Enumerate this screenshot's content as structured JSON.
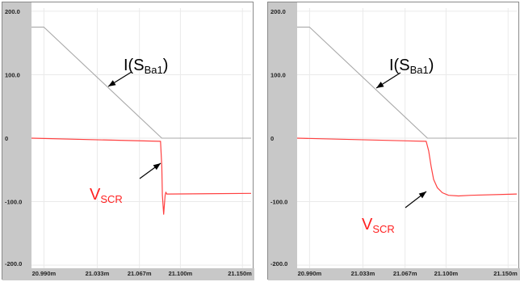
{
  "chart_data": [
    {
      "type": "line",
      "title": "",
      "xlabel": "",
      "ylabel": "",
      "xlim": [
        20.98,
        21.157
      ],
      "ylim": [
        -205,
        205
      ],
      "y_ticks": [
        "200.0",
        "100.0",
        "0",
        "-100.0",
        "-200.0"
      ],
      "x_ticks": [
        "20.990m",
        "21.033m",
        "21.067m",
        "21.100m",
        "21.150m"
      ],
      "grid": true,
      "series": [
        {
          "name": "",
          "color": "#a8a8a8",
          "x": [
            20.98,
            20.99,
            21.085,
            21.157
          ],
          "y": [
            175,
            175,
            0,
            0
          ]
        },
        {
          "name": "",
          "color": "#ff4040",
          "x": [
            20.98,
            21.084,
            21.085,
            21.0855,
            21.086,
            21.0865,
            21.087,
            21.0877,
            21.0883,
            21.089,
            21.091,
            21.157
          ],
          "y": [
            0,
            -5,
            -45,
            -90,
            -105,
            -120,
            -108,
            -90,
            -85,
            -88,
            -88,
            -87
          ]
        }
      ],
      "annotations": {
        "current": {
          "main": "I(S",
          "sub": "Ba1",
          "close": ")"
        },
        "voltage": {
          "main": "V",
          "sub": "SCR"
        }
      }
    },
    {
      "type": "line",
      "title": "",
      "xlabel": "",
      "ylabel": "",
      "xlim": [
        20.98,
        21.157
      ],
      "ylim": [
        -205,
        205
      ],
      "y_ticks": [
        "200.0",
        "100.0",
        "0",
        "-100.0",
        "-200.0"
      ],
      "x_ticks": [
        "20.990m",
        "21.033m",
        "21.067m",
        "21.100m",
        "21.150m"
      ],
      "grid": true,
      "series": [
        {
          "name": "",
          "color": "#a8a8a8",
          "x": [
            20.98,
            20.99,
            21.085,
            21.157
          ],
          "y": [
            175,
            175,
            0,
            0
          ]
        },
        {
          "name": "",
          "color": "#ff4040",
          "x": [
            20.98,
            21.084,
            21.086,
            21.088,
            21.09,
            21.093,
            21.097,
            21.102,
            21.11,
            21.12,
            21.157
          ],
          "y": [
            0,
            -5,
            -20,
            -45,
            -65,
            -78,
            -86,
            -90,
            -91,
            -90,
            -88
          ]
        }
      ],
      "annotations": {
        "current": {
          "main": "I(S",
          "sub": "Ba1",
          "close": ")"
        },
        "voltage": {
          "main": "V",
          "sub": "SCR"
        }
      }
    }
  ]
}
